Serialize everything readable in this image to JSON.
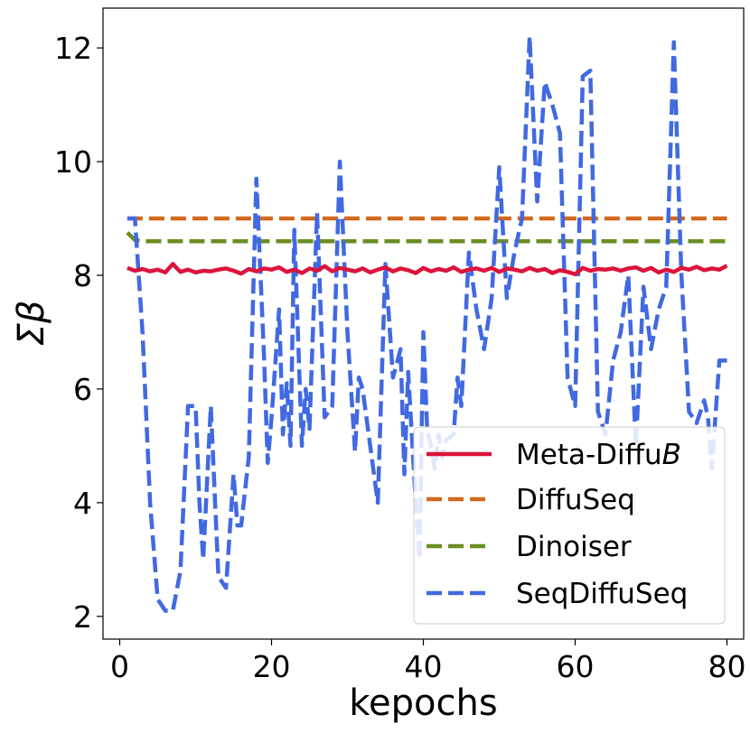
{
  "chart_data": {
    "type": "line",
    "xlabel": "kepochs",
    "ylabel": "Σβ",
    "xlim": [
      -2.2,
      82.2
    ],
    "ylim": [
      1.6,
      12.7
    ],
    "xticks": [
      0,
      20,
      40,
      60,
      80
    ],
    "yticks": [
      2,
      4,
      6,
      8,
      10,
      12
    ],
    "legend": {
      "position": "lower-right"
    },
    "series": [
      {
        "name": "Meta-DiffuB",
        "name_prefix": "Meta-Diffu",
        "name_italic": "B",
        "color": "#dc143c",
        "style": "solid",
        "x": [
          1,
          2,
          3,
          4,
          5,
          6,
          7,
          8,
          9,
          10,
          11,
          12,
          13,
          14,
          15,
          16,
          17,
          18,
          19,
          20,
          21,
          22,
          23,
          24,
          25,
          26,
          27,
          28,
          29,
          30,
          31,
          32,
          33,
          34,
          35,
          36,
          37,
          38,
          39,
          40,
          41,
          42,
          43,
          44,
          45,
          46,
          47,
          48,
          49,
          50,
          51,
          52,
          53,
          54,
          55,
          56,
          57,
          58,
          59,
          60,
          61,
          62,
          63,
          64,
          65,
          66,
          67,
          68,
          69,
          70,
          71,
          72,
          73,
          74,
          75,
          76,
          77,
          78,
          79,
          80
        ],
        "y": [
          8.13,
          8.08,
          8.11,
          8.07,
          8.1,
          8.05,
          8.2,
          8.06,
          8.1,
          8.05,
          8.08,
          8.07,
          8.1,
          8.12,
          8.08,
          8.03,
          8.11,
          8.07,
          8.12,
          8.1,
          8.14,
          8.06,
          8.1,
          8.04,
          8.12,
          8.08,
          8.16,
          8.07,
          8.13,
          8.1,
          8.07,
          8.12,
          8.05,
          8.1,
          8.14,
          8.07,
          8.12,
          8.09,
          8.04,
          8.13,
          8.07,
          8.11,
          8.08,
          8.14,
          8.06,
          8.1,
          8.12,
          8.08,
          8.13,
          8.06,
          8.12,
          8.1,
          8.07,
          8.13,
          8.08,
          8.11,
          8.04,
          8.09,
          8.06,
          8.02,
          8.13,
          8.08,
          8.11,
          8.1,
          8.12,
          8.08,
          8.12,
          8.14,
          8.08,
          8.13,
          8.05,
          8.1,
          8.06,
          8.13,
          8.1,
          8.15,
          8.09,
          8.12,
          8.1,
          8.17
        ]
      },
      {
        "name": "DiffuSeq",
        "color": "#d2691e",
        "style": "dashed",
        "x": [
          1,
          80
        ],
        "y": [
          9.0,
          9.0
        ]
      },
      {
        "name": "Dinoiser",
        "color": "#6b8e23",
        "style": "dashed",
        "x": [
          1,
          2,
          3,
          4,
          5,
          10,
          20,
          30,
          40,
          50,
          60,
          70,
          80
        ],
        "y": [
          8.75,
          8.62,
          8.6,
          8.6,
          8.6,
          8.6,
          8.6,
          8.6,
          8.6,
          8.6,
          8.6,
          8.6,
          8.6
        ]
      },
      {
        "name": "SeqDiffuSeq",
        "color": "#4169e1",
        "style": "dashed",
        "x": [
          1,
          2,
          3,
          4,
          5,
          6,
          7,
          8,
          9,
          10,
          10.5,
          11,
          12,
          12.5,
          13,
          14,
          15,
          15.5,
          16,
          17,
          18,
          19,
          19.5,
          20,
          21,
          21.5,
          22,
          22.5,
          23,
          24,
          24.5,
          25,
          26,
          27,
          28,
          29,
          30,
          31,
          31.5,
          32,
          33,
          34,
          35,
          36,
          37,
          37.5,
          38,
          39,
          39.5,
          40,
          40.5,
          41,
          41.5,
          42,
          42.5,
          43,
          44,
          44.5,
          45,
          46,
          47,
          48,
          49,
          50,
          51,
          52,
          53,
          54,
          55,
          56,
          57,
          58,
          59,
          60,
          61,
          62,
          63,
          64,
          65,
          66,
          67,
          68,
          69,
          70,
          71,
          72,
          73,
          74,
          75,
          76,
          77,
          77.5,
          78,
          79,
          80
        ],
        "y": [
          9.0,
          9.0,
          7.0,
          4.0,
          2.3,
          2.1,
          2.1,
          2.8,
          5.7,
          5.7,
          4.0,
          3.0,
          5.7,
          4.2,
          2.7,
          2.5,
          4.5,
          3.6,
          3.6,
          4.8,
          9.7,
          6.6,
          4.7,
          5.5,
          7.4,
          5.2,
          6.1,
          5.0,
          8.8,
          5.0,
          6.0,
          5.3,
          9.1,
          5.5,
          5.7,
          10.0,
          7.0,
          4.9,
          6.2,
          6.0,
          5.0,
          4.0,
          8.2,
          6.2,
          6.7,
          4.5,
          6.3,
          4.0,
          3.0,
          7.0,
          5.3,
          5.0,
          4.6,
          5.2,
          4.8,
          5.1,
          5.2,
          6.2,
          5.7,
          8.4,
          7.4,
          6.7,
          7.6,
          9.9,
          7.6,
          8.4,
          9.0,
          12.2,
          9.3,
          11.4,
          11.0,
          10.5,
          6.2,
          5.7,
          11.5,
          11.6,
          5.6,
          5.2,
          6.5,
          7.0,
          8.0,
          5.0,
          7.8,
          6.7,
          7.4,
          7.8,
          12.1,
          8.0,
          5.6,
          5.4,
          5.8,
          5.5,
          4.6,
          6.5,
          6.5
        ]
      }
    ]
  }
}
